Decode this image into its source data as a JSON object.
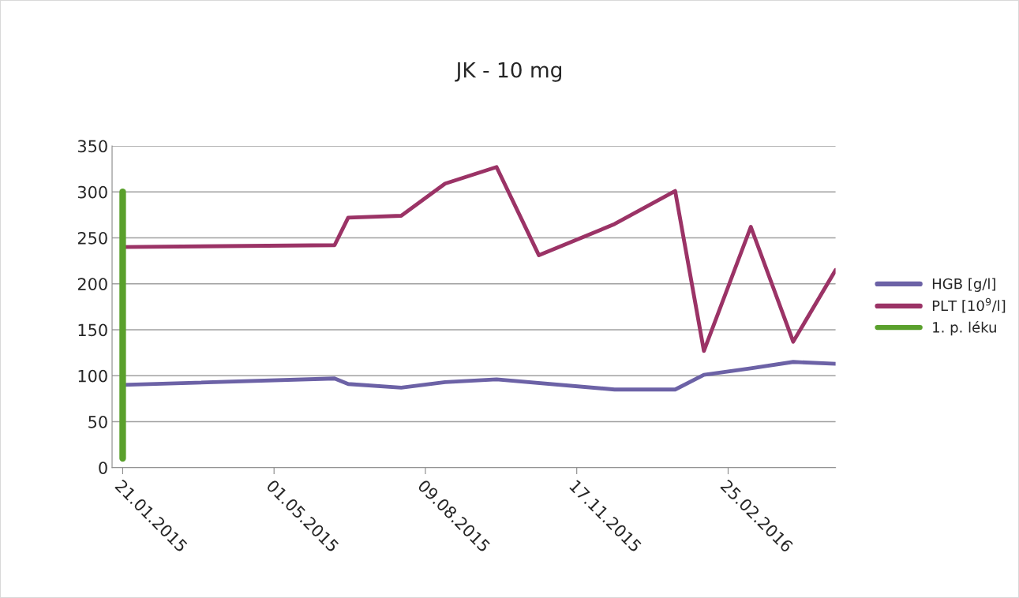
{
  "chart_data": {
    "type": "line",
    "title": "JK - 10 mg",
    "series": [
      {
        "name": "HGB [g/l]",
        "color": "#6c62a6",
        "x": [
          "2015-01-21",
          "2015-06-10",
          "2015-06-19",
          "2015-07-24",
          "2015-08-22",
          "2015-09-25",
          "2015-12-12",
          "2016-01-21",
          "2016-02-09",
          "2016-03-11",
          "2016-04-08",
          "2016-05-06"
        ],
        "values": [
          90,
          97,
          91,
          87,
          93,
          96,
          85,
          85,
          101,
          108,
          115,
          113
        ]
      },
      {
        "name": "PLT [10$^{9}$/l]",
        "color": "#9b3366",
        "x": [
          "2015-01-21",
          "2015-06-10",
          "2015-06-19",
          "2015-07-24",
          "2015-08-22",
          "2015-09-25",
          "2015-10-23",
          "2015-12-12",
          "2016-01-21",
          "2016-02-09",
          "2016-03-11",
          "2016-04-08",
          "2016-05-06"
        ],
        "values": [
          240,
          242,
          272,
          274,
          309,
          327,
          231,
          265,
          301,
          127,
          262,
          137,
          215
        ]
      },
      {
        "name": "1. p. léku",
        "color": "#5aa02c",
        "x": [
          "2015-01-21",
          "2015-01-21"
        ],
        "values": [
          10,
          300
        ]
      }
    ],
    "xlim": [
      "2015-01-14",
      "2016-05-06"
    ],
    "xticks": [
      {
        "value": "2015-01-21",
        "label": "21.01.2015"
      },
      {
        "value": "2015-05-01",
        "label": "01.05.2015"
      },
      {
        "value": "2015-08-09",
        "label": "09.08.2015"
      },
      {
        "value": "2015-11-17",
        "label": "17.11.2015"
      },
      {
        "value": "2016-02-25",
        "label": "25.02.2016"
      }
    ],
    "ylim": [
      0,
      350
    ],
    "yticks": [
      0,
      50,
      100,
      150,
      200,
      250,
      300,
      350
    ],
    "grid": "y",
    "legend": "right",
    "marker": "none",
    "line_style": "solid"
  }
}
